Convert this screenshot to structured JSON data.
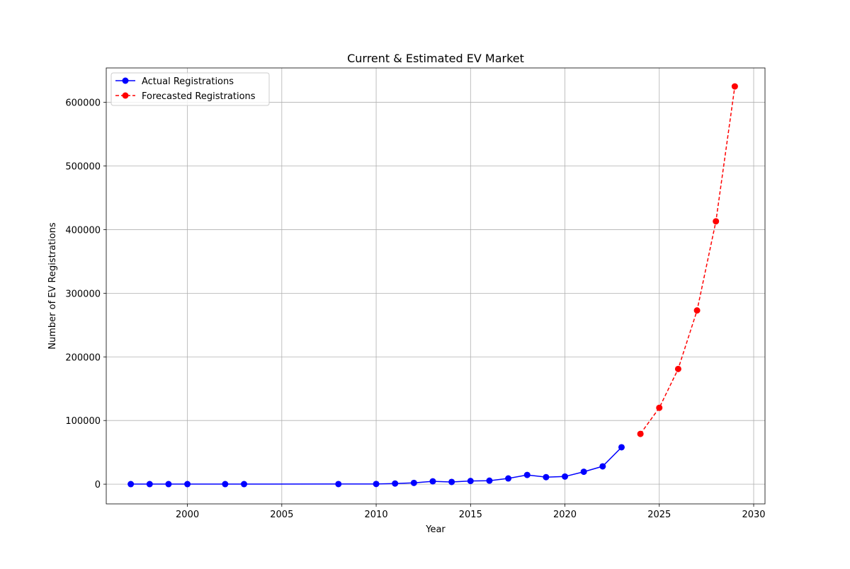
{
  "chart_data": {
    "type": "line",
    "title": "Current & Estimated EV Market",
    "xlabel": "Year",
    "ylabel": "Number of EV Registrations",
    "xlim": [
      1995.7,
      2030.6
    ],
    "ylim": [
      -31000,
      654000
    ],
    "x_ticks": [
      2000,
      2005,
      2010,
      2015,
      2020,
      2025,
      2030
    ],
    "y_ticks": [
      0,
      100000,
      200000,
      300000,
      400000,
      500000,
      600000
    ],
    "grid": true,
    "legend_position": "top-left",
    "series": [
      {
        "name": "Actual Registrations",
        "color": "#0000ff",
        "line_style": "solid",
        "marker": "circle",
        "x": [
          1997,
          1998,
          1999,
          2000,
          2002,
          2003,
          2008,
          2010,
          2011,
          2012,
          2013,
          2014,
          2015,
          2016,
          2017,
          2018,
          2019,
          2020,
          2021,
          2022,
          2023
        ],
        "y": [
          100,
          100,
          100,
          100,
          100,
          100,
          200,
          300,
          1000,
          2000,
          4500,
          3500,
          5000,
          5500,
          9000,
          14500,
          11000,
          12000,
          19500,
          28000,
          58000
        ]
      },
      {
        "name": "Forecasted Registrations",
        "color": "#ff0000",
        "line_style": "dashed",
        "marker": "circle",
        "x": [
          2024,
          2025,
          2026,
          2027,
          2028,
          2029
        ],
        "y": [
          79000,
          120000,
          181000,
          273000,
          413000,
          625000
        ]
      }
    ]
  }
}
